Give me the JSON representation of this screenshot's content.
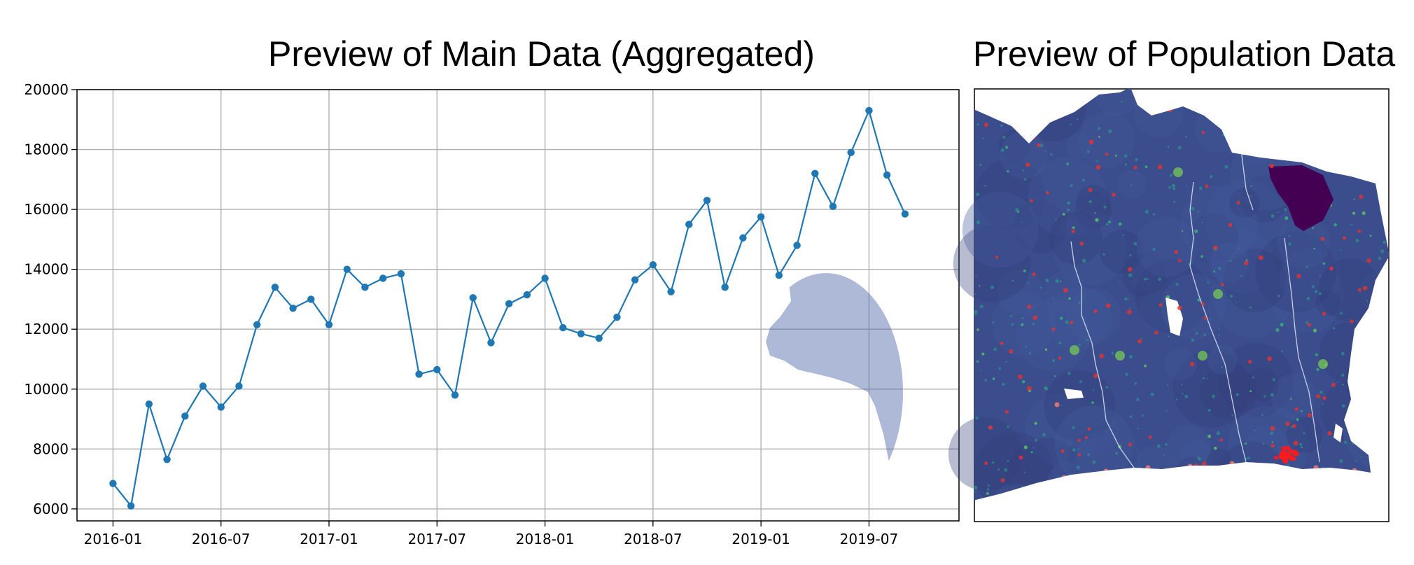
{
  "titles": {
    "main": "Preview of Main Data (Aggregated)",
    "population": "Preview of Population Data"
  },
  "chart_data": [
    {
      "type": "line",
      "title": "Preview of Main Data (Aggregated)",
      "xlabel": "",
      "ylabel": "",
      "grid": true,
      "color": "#1f77b4",
      "x_tick_labels": [
        "2016-01",
        "2016-07",
        "2017-01",
        "2017-07",
        "2018-01",
        "2018-07",
        "2019-01",
        "2019-07"
      ],
      "y_tick_labels": [
        "6000",
        "8000",
        "10000",
        "12000",
        "14000",
        "16000",
        "18000",
        "20000"
      ],
      "y_ticks": [
        6000,
        8000,
        10000,
        12000,
        14000,
        16000,
        18000,
        20000
      ],
      "ylim": [
        5600,
        20000
      ],
      "xlim": [
        "2015-11",
        "2019-12"
      ],
      "x": [
        "2016-01",
        "2016-02",
        "2016-03",
        "2016-04",
        "2016-05",
        "2016-06",
        "2016-07",
        "2016-08",
        "2016-09",
        "2016-10",
        "2016-11",
        "2016-12",
        "2017-01",
        "2017-02",
        "2017-03",
        "2017-04",
        "2017-05",
        "2017-06",
        "2017-07",
        "2017-08",
        "2017-09",
        "2017-10",
        "2017-11",
        "2017-12",
        "2018-01",
        "2018-02",
        "2018-03",
        "2018-04",
        "2018-05",
        "2018-06",
        "2018-07",
        "2018-08",
        "2018-09",
        "2018-10",
        "2018-11",
        "2018-12",
        "2019-01",
        "2019-02",
        "2019-03",
        "2019-04",
        "2019-05",
        "2019-06",
        "2019-07",
        "2019-08",
        "2019-09"
      ],
      "values": [
        6850,
        6100,
        9500,
        7650,
        9100,
        10100,
        9400,
        10100,
        12150,
        13400,
        12700,
        13000,
        12150,
        14000,
        13400,
        13700,
        13850,
        10500,
        10650,
        9800,
        13050,
        11550,
        12850,
        13150,
        13700,
        12050,
        11850,
        11700,
        12400,
        13650,
        14150,
        13250,
        15500,
        16300,
        13400,
        15050,
        15750,
        13800,
        14800,
        17200,
        16100,
        17900,
        19300,
        17150,
        15850
      ]
    },
    {
      "type": "heatmap",
      "title": "Preview of Population Data",
      "colormap": "viridis",
      "axes": "none",
      "overlay": "red point markers of locations"
    }
  ]
}
